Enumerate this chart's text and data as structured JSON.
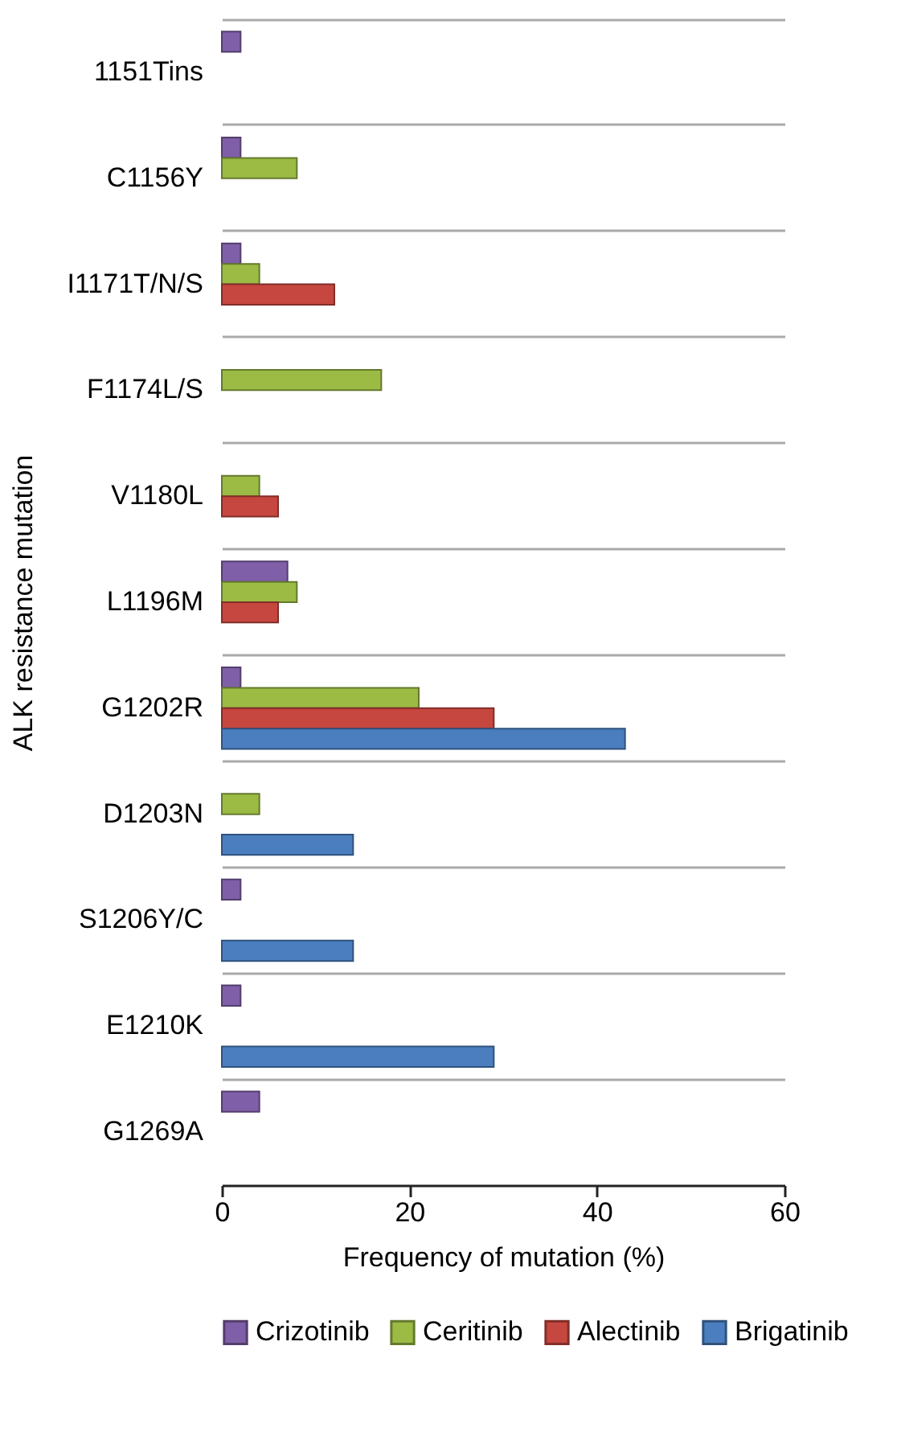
{
  "chart_data": {
    "type": "bar",
    "orientation": "horizontal",
    "categories": [
      "1151Tins",
      "C1156Y",
      "I1171T/N/S",
      "F1174L/S",
      "V1180L",
      "L1196M",
      "G1202R",
      "D1203N",
      "S1206Y/C",
      "E1210K",
      "G1269A"
    ],
    "series": [
      {
        "name": "Crizotinib",
        "color": "#7f5fa8",
        "values": [
          2,
          2,
          2,
          null,
          null,
          7,
          2,
          null,
          2,
          2,
          4
        ]
      },
      {
        "name": "Ceritinib",
        "color": "#9bbb45",
        "values": [
          null,
          8,
          4,
          17,
          4,
          8,
          21,
          4,
          null,
          null,
          null
        ]
      },
      {
        "name": "Alectinib",
        "color": "#c6473f",
        "values": [
          null,
          null,
          12,
          null,
          6,
          6,
          29,
          null,
          null,
          null,
          null
        ]
      },
      {
        "name": "Brigatinib",
        "color": "#4a7ebf",
        "values": [
          null,
          null,
          null,
          null,
          null,
          null,
          43,
          14,
          14,
          29,
          null
        ]
      }
    ],
    "xlabel": "Frequency of mutation (%)",
    "ylabel": "ALK resistance mutation",
    "xlim": [
      0,
      60
    ],
    "xticks": [
      0,
      20,
      40,
      60
    ],
    "grid": "y",
    "legend": "bottom"
  }
}
